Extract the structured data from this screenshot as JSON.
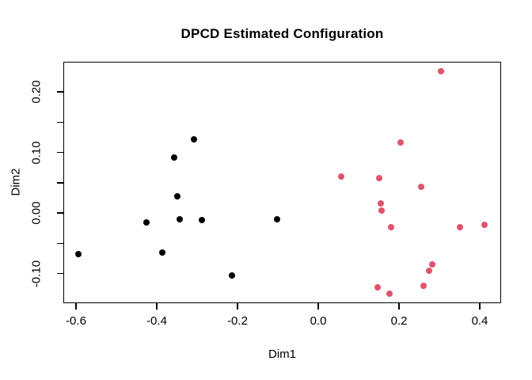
{
  "title": "DPCD Estimated Configuration",
  "colors": {
    "background": "#FFFFFF",
    "axis": "#000000",
    "group1": "#000000",
    "group2": "#DF536B"
  },
  "chart_data": {
    "type": "scatter",
    "title": "DPCD Estimated Configuration",
    "xlabel": "Dim1",
    "ylabel": "Dim2",
    "xlim": [
      -0.63,
      0.45
    ],
    "ylim": [
      -0.15,
      0.25
    ],
    "grid": false,
    "legend": false,
    "x_ticks": {
      "values": [
        -0.6,
        -0.4,
        -0.2,
        0.0,
        0.2,
        0.4
      ],
      "labels": [
        "-0.6",
        "-0.4",
        "-0.2",
        "0.0",
        "0.2",
        "0.4"
      ]
    },
    "y_ticks": {
      "major_values": [
        0.2,
        0.1,
        0.0,
        -0.1
      ],
      "major_labels": [
        "0.20",
        "0.10",
        "0.00",
        "-0.10"
      ],
      "minor_values": [
        0.15,
        0.05,
        -0.05
      ]
    },
    "series": [
      {
        "name": "group-1-black",
        "color": "#000000",
        "points": [
          [
            -0.307,
            0.122
          ],
          [
            -0.356,
            0.091
          ],
          [
            -0.349,
            0.028
          ],
          [
            -0.426,
            -0.016
          ],
          [
            -0.344,
            -0.011
          ],
          [
            -0.288,
            -0.012
          ],
          [
            -0.101,
            -0.01
          ],
          [
            -0.595,
            -0.068
          ],
          [
            -0.387,
            -0.066
          ],
          [
            -0.213,
            -0.103
          ]
        ]
      },
      {
        "name": "group-2-pink",
        "color": "#DF536B",
        "points": [
          [
            0.304,
            0.234
          ],
          [
            0.203,
            0.116
          ],
          [
            0.056,
            0.06
          ],
          [
            0.15,
            0.057
          ],
          [
            0.255,
            0.043
          ],
          [
            0.155,
            0.016
          ],
          [
            0.157,
            0.004
          ],
          [
            0.18,
            -0.023
          ],
          [
            0.351,
            -0.023
          ],
          [
            0.411,
            -0.02
          ],
          [
            0.282,
            -0.085
          ],
          [
            0.275,
            -0.096
          ],
          [
            0.261,
            -0.12
          ],
          [
            0.148,
            -0.123
          ],
          [
            0.176,
            -0.133
          ]
        ]
      }
    ]
  }
}
